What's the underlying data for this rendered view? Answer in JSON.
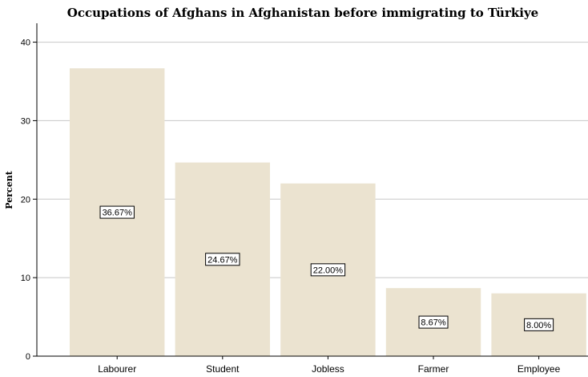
{
  "chart_data": {
    "type": "bar",
    "title": "Occupations of Afghans in Afghanistan before immigrating to Türkiye",
    "xlabel": "",
    "ylabel": "Percent",
    "categories": [
      "Labourer",
      "Student",
      "Jobless",
      "Farmer",
      "Employee"
    ],
    "values": [
      36.67,
      24.67,
      22.0,
      8.67,
      8.0
    ],
    "data_labels": [
      "36.67%",
      "24.67%",
      "22.00%",
      "8.67%",
      "8.00%"
    ],
    "ylim": [
      0,
      42
    ],
    "yticks": [
      0,
      10,
      20,
      30,
      40
    ],
    "grid": true,
    "bar_color": "#ebe3d0",
    "grid_color": "#c8c8c8"
  }
}
